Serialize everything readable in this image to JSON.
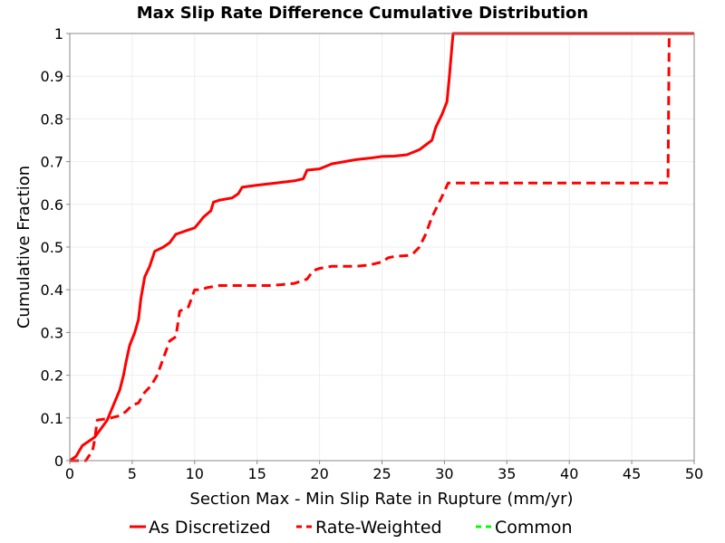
{
  "chart_data": {
    "type": "line",
    "title": "Max Slip Rate Difference Cumulative Distribution",
    "xlabel": "Section Max - Min Slip Rate in Rupture (mm/yr)",
    "ylabel": "Cumulative Fraction",
    "xlim": [
      0,
      50
    ],
    "ylim": [
      0,
      1
    ],
    "x_ticks": [
      "0",
      "5",
      "10",
      "15",
      "20",
      "25",
      "30",
      "35",
      "40",
      "45",
      "50"
    ],
    "y_ticks": [
      "0",
      "0.1",
      "0.2",
      "0.3",
      "0.4",
      "0.5",
      "0.6",
      "0.7",
      "0.8",
      "0.9",
      "1"
    ],
    "grid": true,
    "legend_position": "bottom",
    "series": [
      {
        "name": "As Discretized",
        "color": "#ff0000",
        "style": "solid",
        "points": [
          [
            0,
            0
          ],
          [
            0.5,
            0.01
          ],
          [
            0.8,
            0.025
          ],
          [
            1,
            0.035
          ],
          [
            1.5,
            0.045
          ],
          [
            2,
            0.055
          ],
          [
            2.5,
            0.075
          ],
          [
            3,
            0.095
          ],
          [
            3.5,
            0.13
          ],
          [
            4,
            0.165
          ],
          [
            4.3,
            0.2
          ],
          [
            4.5,
            0.23
          ],
          [
            4.8,
            0.27
          ],
          [
            5.2,
            0.3
          ],
          [
            5.5,
            0.33
          ],
          [
            5.7,
            0.38
          ],
          [
            6,
            0.43
          ],
          [
            6.4,
            0.455
          ],
          [
            6.8,
            0.49
          ],
          [
            7.5,
            0.5
          ],
          [
            8,
            0.51
          ],
          [
            8.5,
            0.53
          ],
          [
            9,
            0.535
          ],
          [
            9.5,
            0.54
          ],
          [
            10,
            0.545
          ],
          [
            10.3,
            0.555
          ],
          [
            10.7,
            0.57
          ],
          [
            11.3,
            0.585
          ],
          [
            11.5,
            0.605
          ],
          [
            12,
            0.61
          ],
          [
            13,
            0.615
          ],
          [
            13.5,
            0.625
          ],
          [
            13.8,
            0.64
          ],
          [
            15,
            0.645
          ],
          [
            16.5,
            0.65
          ],
          [
            18,
            0.655
          ],
          [
            18.7,
            0.66
          ],
          [
            19,
            0.68
          ],
          [
            20,
            0.683
          ],
          [
            21,
            0.695
          ],
          [
            22,
            0.7
          ],
          [
            23,
            0.705
          ],
          [
            24,
            0.708
          ],
          [
            25,
            0.712
          ],
          [
            26,
            0.713
          ],
          [
            27,
            0.716
          ],
          [
            28,
            0.728
          ],
          [
            29,
            0.75
          ],
          [
            29.3,
            0.78
          ],
          [
            29.8,
            0.81
          ],
          [
            30.2,
            0.84
          ],
          [
            30.4,
            0.9
          ],
          [
            30.6,
            0.97
          ],
          [
            30.7,
            1.0
          ],
          [
            50,
            1.0
          ]
        ]
      },
      {
        "name": "Rate-Weighted",
        "color": "#ff0000",
        "style": "dashed",
        "points": [
          [
            0,
            0
          ],
          [
            1.3,
            0
          ],
          [
            1.5,
            0.01
          ],
          [
            1.8,
            0.02
          ],
          [
            2,
            0.05
          ],
          [
            2.2,
            0.095
          ],
          [
            3,
            0.098
          ],
          [
            4,
            0.105
          ],
          [
            4.5,
            0.115
          ],
          [
            5,
            0.13
          ],
          [
            5.5,
            0.135
          ],
          [
            6,
            0.16
          ],
          [
            6.5,
            0.175
          ],
          [
            7,
            0.2
          ],
          [
            7.5,
            0.24
          ],
          [
            8,
            0.28
          ],
          [
            8.5,
            0.29
          ],
          [
            8.8,
            0.35
          ],
          [
            9.5,
            0.36
          ],
          [
            10,
            0.4
          ],
          [
            10.5,
            0.4
          ],
          [
            11,
            0.405
          ],
          [
            12,
            0.41
          ],
          [
            13,
            0.41
          ],
          [
            14,
            0.41
          ],
          [
            16,
            0.41
          ],
          [
            17,
            0.412
          ],
          [
            18,
            0.415
          ],
          [
            19,
            0.425
          ],
          [
            19.5,
            0.445
          ],
          [
            20,
            0.45
          ],
          [
            21,
            0.455
          ],
          [
            22,
            0.455
          ],
          [
            23,
            0.455
          ],
          [
            24,
            0.458
          ],
          [
            25,
            0.465
          ],
          [
            25.5,
            0.475
          ],
          [
            26,
            0.478
          ],
          [
            27,
            0.48
          ],
          [
            27.5,
            0.485
          ],
          [
            28,
            0.5
          ],
          [
            28.5,
            0.53
          ],
          [
            29,
            0.57
          ],
          [
            29.5,
            0.6
          ],
          [
            30,
            0.63
          ],
          [
            30.3,
            0.65
          ],
          [
            35,
            0.65
          ],
          [
            40,
            0.65
          ],
          [
            47.9,
            0.65
          ],
          [
            48,
            0.99
          ],
          [
            48.2,
            1.0
          ],
          [
            50,
            1.0
          ]
        ]
      },
      {
        "name": "Common",
        "color": "#00ff00",
        "style": "dashed",
        "points": []
      }
    ]
  }
}
